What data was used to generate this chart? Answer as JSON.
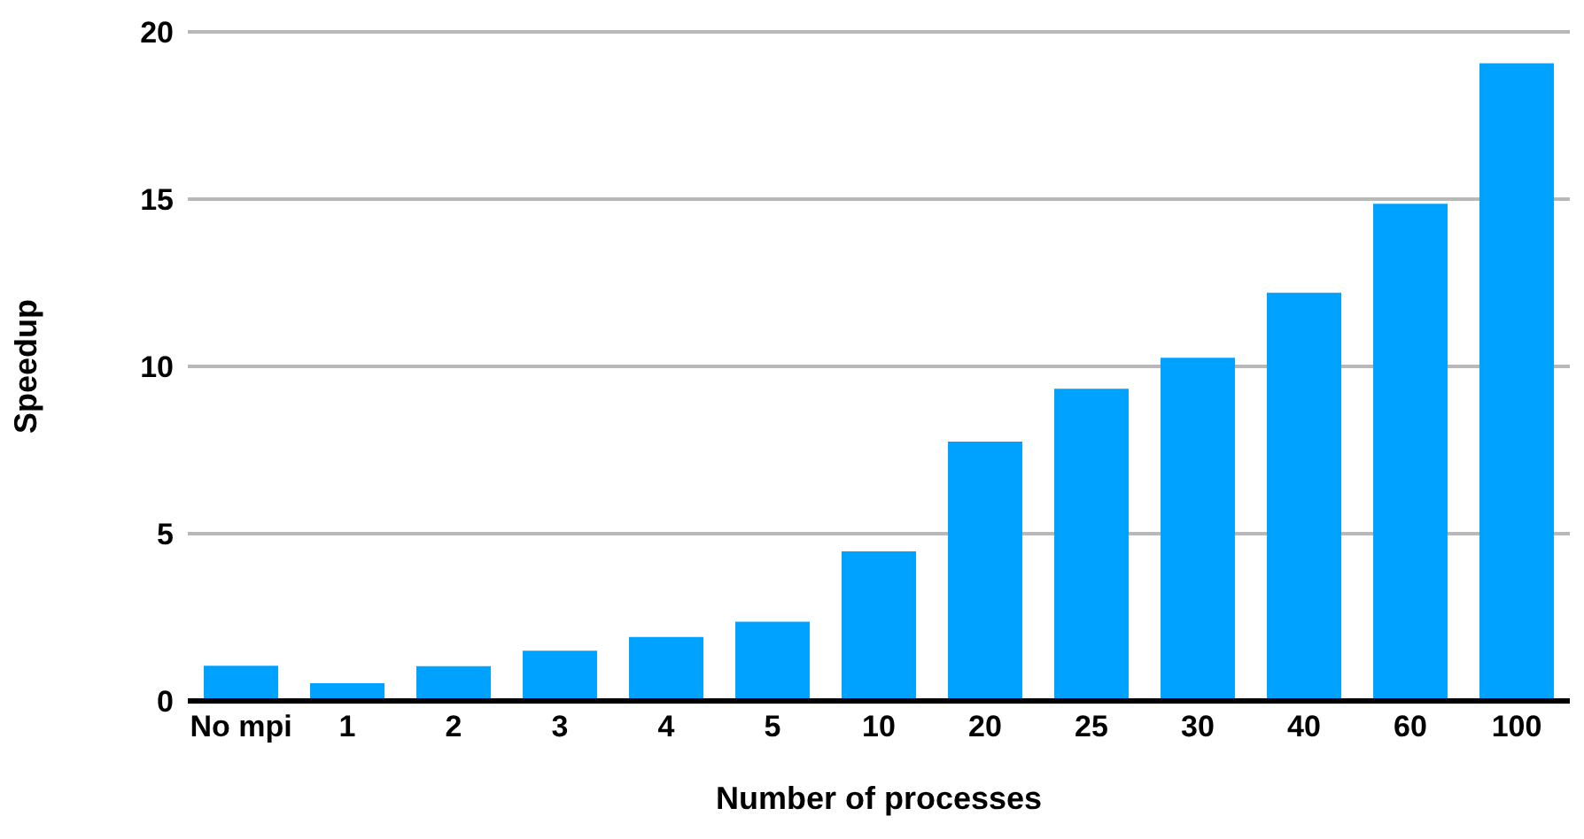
{
  "chart_data": {
    "type": "bar",
    "xlabel": "Number of processes",
    "ylabel": "Speedup",
    "categories": [
      "No mpi",
      "1",
      "2",
      "3",
      "4",
      "5",
      "10",
      "20",
      "25",
      "30",
      "40",
      "60",
      "100"
    ],
    "values": [
      1.05,
      0.53,
      1.04,
      1.5,
      1.91,
      2.37,
      4.47,
      7.75,
      9.33,
      10.26,
      12.2,
      14.86,
      19.06
    ],
    "color": "#00a2ff",
    "ylim": [
      0,
      20
    ],
    "yticks": [
      0,
      5,
      10,
      15,
      20
    ],
    "grid": "y"
  }
}
